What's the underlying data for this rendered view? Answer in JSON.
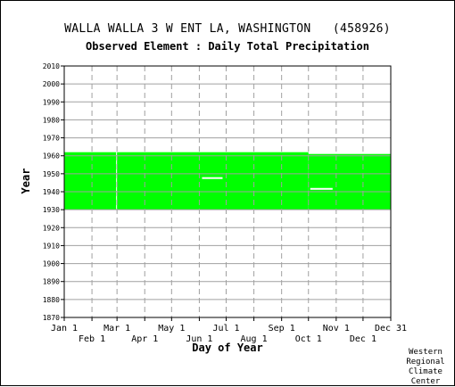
{
  "title": "WALLA WALLA 3 W ENT LA, WASHINGTON   (458926)",
  "subtitle": "Observed Element : Daily Total Precipitation",
  "credit": [
    "Western",
    "Regional",
    "Climate",
    "Center"
  ],
  "colors": {
    "data": "#00ff00",
    "grid": "#a0a0a0",
    "axis": "#000000",
    "gap": "#ffffff"
  },
  "chart_data": {
    "type": "heatmap",
    "title": "WALLA WALLA 3 W ENT LA, WASHINGTON   (458926)",
    "subtitle": "Observed Element : Daily Total Precipitation",
    "xlabel": "Day of Year",
    "ylabel": "Year",
    "xlim": [
      1,
      366
    ],
    "ylim": [
      1870,
      2010
    ],
    "yticks": [
      1870,
      1880,
      1890,
      1900,
      1910,
      1920,
      1930,
      1940,
      1950,
      1960,
      1970,
      1980,
      1990,
      2000,
      2010
    ],
    "xticks_upper": [
      {
        "label": "Jan 1",
        "day": 1
      },
      {
        "label": "Mar 1",
        "day": 60
      },
      {
        "label": "May 1",
        "day": 121
      },
      {
        "label": "Jul 1",
        "day": 182
      },
      {
        "label": "Sep 1",
        "day": 244
      },
      {
        "label": "Nov 1",
        "day": 305
      },
      {
        "label": "Dec 31",
        "day": 366
      }
    ],
    "xticks_lower": [
      {
        "label": "Feb 1",
        "day": 32
      },
      {
        "label": "Apr 1",
        "day": 91
      },
      {
        "label": "Jun 1",
        "day": 152
      },
      {
        "label": "Aug 1",
        "day": 213
      },
      {
        "label": "Oct 1",
        "day": 274
      },
      {
        "label": "Dec 1",
        "day": 335
      }
    ],
    "grid": true,
    "data_coverage": [
      {
        "start_day": 1,
        "end_day": 274,
        "start_year": 1930,
        "end_year": 1962
      },
      {
        "start_day": 274,
        "end_day": 366,
        "start_year": 1930,
        "end_year": 1961
      }
    ],
    "missing": [
      {
        "start_day": 59,
        "end_day": 60,
        "start_year": 1930,
        "end_year": 1962
      },
      {
        "start_day": 155,
        "end_day": 178,
        "year": 1947.6
      },
      {
        "start_day": 276,
        "end_day": 301,
        "year": 1941.6
      }
    ]
  }
}
